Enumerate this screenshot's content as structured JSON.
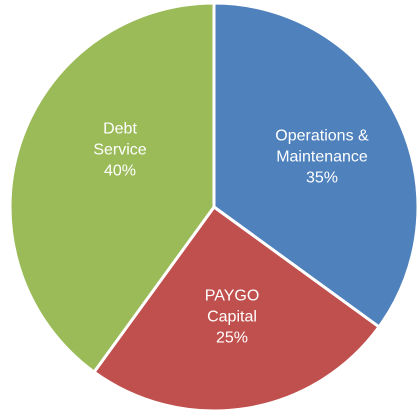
{
  "chart_data": {
    "type": "pie",
    "categories": [
      "Operations & Maintenance",
      "PAYGO Capital",
      "Debt Service"
    ],
    "values": [
      35,
      25,
      40
    ],
    "value_labels": [
      "35%",
      "25%",
      "40%"
    ],
    "colors": [
      "#4f81bd",
      "#c0504d",
      "#9bbb59"
    ]
  }
}
